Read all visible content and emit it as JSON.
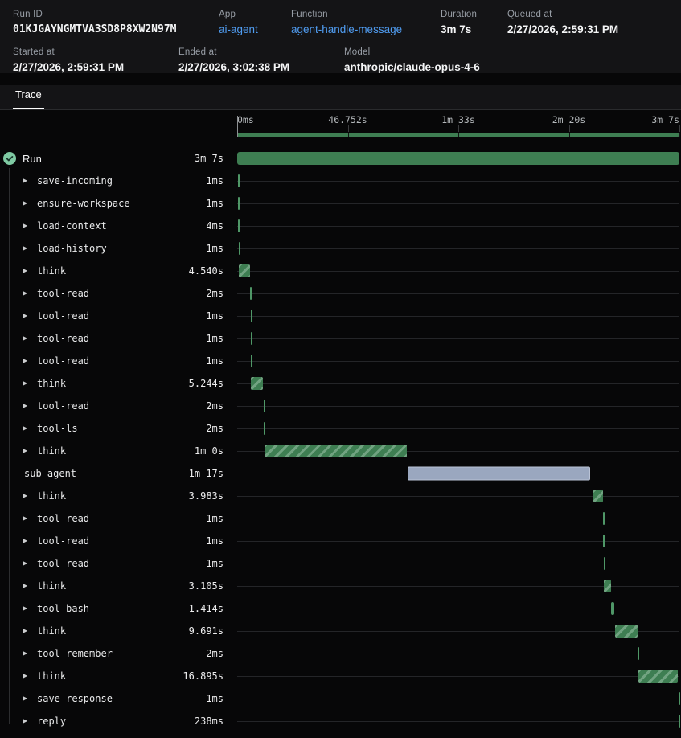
{
  "colors": {
    "green": "#3e7e52",
    "green-tick": "#4f9767",
    "subagent": "#9aa7bf",
    "link": "#509df2",
    "check-circle": "#7fcaa3"
  },
  "header": {
    "fields": [
      {
        "label": "Run ID",
        "value": "01KJGAYNGMTVA3SD8P8XW2N97M"
      },
      {
        "label": "App",
        "value": "ai-agent"
      },
      {
        "label": "Function",
        "value": "agent-handle-message"
      },
      {
        "label": "Duration",
        "value": "3m 7s"
      },
      {
        "label": "Queued at",
        "value": "2/27/2026, 2:59:31 PM"
      },
      {
        "label": "Started at",
        "value": "2/27/2026, 2:59:31 PM"
      },
      {
        "label": "Ended at",
        "value": "2/27/2026, 3:02:38 PM"
      },
      {
        "label": "Model",
        "value": "anthropic/claude-opus-4-6"
      }
    ]
  },
  "tabs": [
    {
      "label": "Trace",
      "active": true
    }
  ],
  "timeline": {
    "total_seconds": 187,
    "axis_ticks": [
      {
        "label": "0ms",
        "t": 0
      },
      {
        "label": "46.752s",
        "t": 46.752
      },
      {
        "label": "1m 33s",
        "t": 93.5
      },
      {
        "label": "2m 20s",
        "t": 140.25
      },
      {
        "label": "3m 7s",
        "t": 187
      }
    ]
  },
  "spans": [
    {
      "name": "Run",
      "duration": "3m 7s",
      "start": 0,
      "dur": 187,
      "kind": "root"
    },
    {
      "name": "save-incoming",
      "duration": "1ms",
      "start": 0.3,
      "dur": 0.001,
      "kind": "step"
    },
    {
      "name": "ensure-workspace",
      "duration": "1ms",
      "start": 0.4,
      "dur": 0.001,
      "kind": "step"
    },
    {
      "name": "load-context",
      "duration": "4ms",
      "start": 0.5,
      "dur": 0.004,
      "kind": "step"
    },
    {
      "name": "load-history",
      "duration": "1ms",
      "start": 0.6,
      "dur": 0.001,
      "kind": "step"
    },
    {
      "name": "think",
      "duration": "4.540s",
      "start": 0.8,
      "dur": 4.54,
      "kind": "think"
    },
    {
      "name": "tool-read",
      "duration": "2ms",
      "start": 5.6,
      "dur": 0.002,
      "kind": "step"
    },
    {
      "name": "tool-read",
      "duration": "1ms",
      "start": 5.7,
      "dur": 0.001,
      "kind": "step"
    },
    {
      "name": "tool-read",
      "duration": "1ms",
      "start": 5.7,
      "dur": 0.001,
      "kind": "step"
    },
    {
      "name": "tool-read",
      "duration": "1ms",
      "start": 5.7,
      "dur": 0.001,
      "kind": "step"
    },
    {
      "name": "think",
      "duration": "5.244s",
      "start": 5.8,
      "dur": 5.244,
      "kind": "think"
    },
    {
      "name": "tool-read",
      "duration": "2ms",
      "start": 11.2,
      "dur": 0.002,
      "kind": "step"
    },
    {
      "name": "tool-ls",
      "duration": "2ms",
      "start": 11.3,
      "dur": 0.002,
      "kind": "step"
    },
    {
      "name": "think",
      "duration": "1m 0s",
      "start": 11.4,
      "dur": 60.4,
      "kind": "think"
    },
    {
      "name": "sub-agent",
      "duration": "1m 17s",
      "start": 72.0,
      "dur": 77.3,
      "kind": "subagent"
    },
    {
      "name": "think",
      "duration": "3.983s",
      "start": 150.6,
      "dur": 3.983,
      "kind": "think"
    },
    {
      "name": "tool-read",
      "duration": "1ms",
      "start": 154.8,
      "dur": 0.001,
      "kind": "step"
    },
    {
      "name": "tool-read",
      "duration": "1ms",
      "start": 154.8,
      "dur": 0.001,
      "kind": "step"
    },
    {
      "name": "tool-read",
      "duration": "1ms",
      "start": 154.9,
      "dur": 0.001,
      "kind": "step"
    },
    {
      "name": "think",
      "duration": "3.105s",
      "start": 155.0,
      "dur": 3.105,
      "kind": "think"
    },
    {
      "name": "tool-bash",
      "duration": "1.414s",
      "start": 158.2,
      "dur": 1.414,
      "kind": "step"
    },
    {
      "name": "think",
      "duration": "9.691s",
      "start": 159.7,
      "dur": 9.691,
      "kind": "think"
    },
    {
      "name": "tool-remember",
      "duration": "2ms",
      "start": 169.4,
      "dur": 0.002,
      "kind": "step"
    },
    {
      "name": "think",
      "duration": "16.895s",
      "start": 169.5,
      "dur": 16.895,
      "kind": "think"
    },
    {
      "name": "save-response",
      "duration": "1ms",
      "start": 186.5,
      "dur": 0.001,
      "kind": "step"
    },
    {
      "name": "reply",
      "duration": "238ms",
      "start": 186.6,
      "dur": 0.238,
      "kind": "step"
    }
  ]
}
